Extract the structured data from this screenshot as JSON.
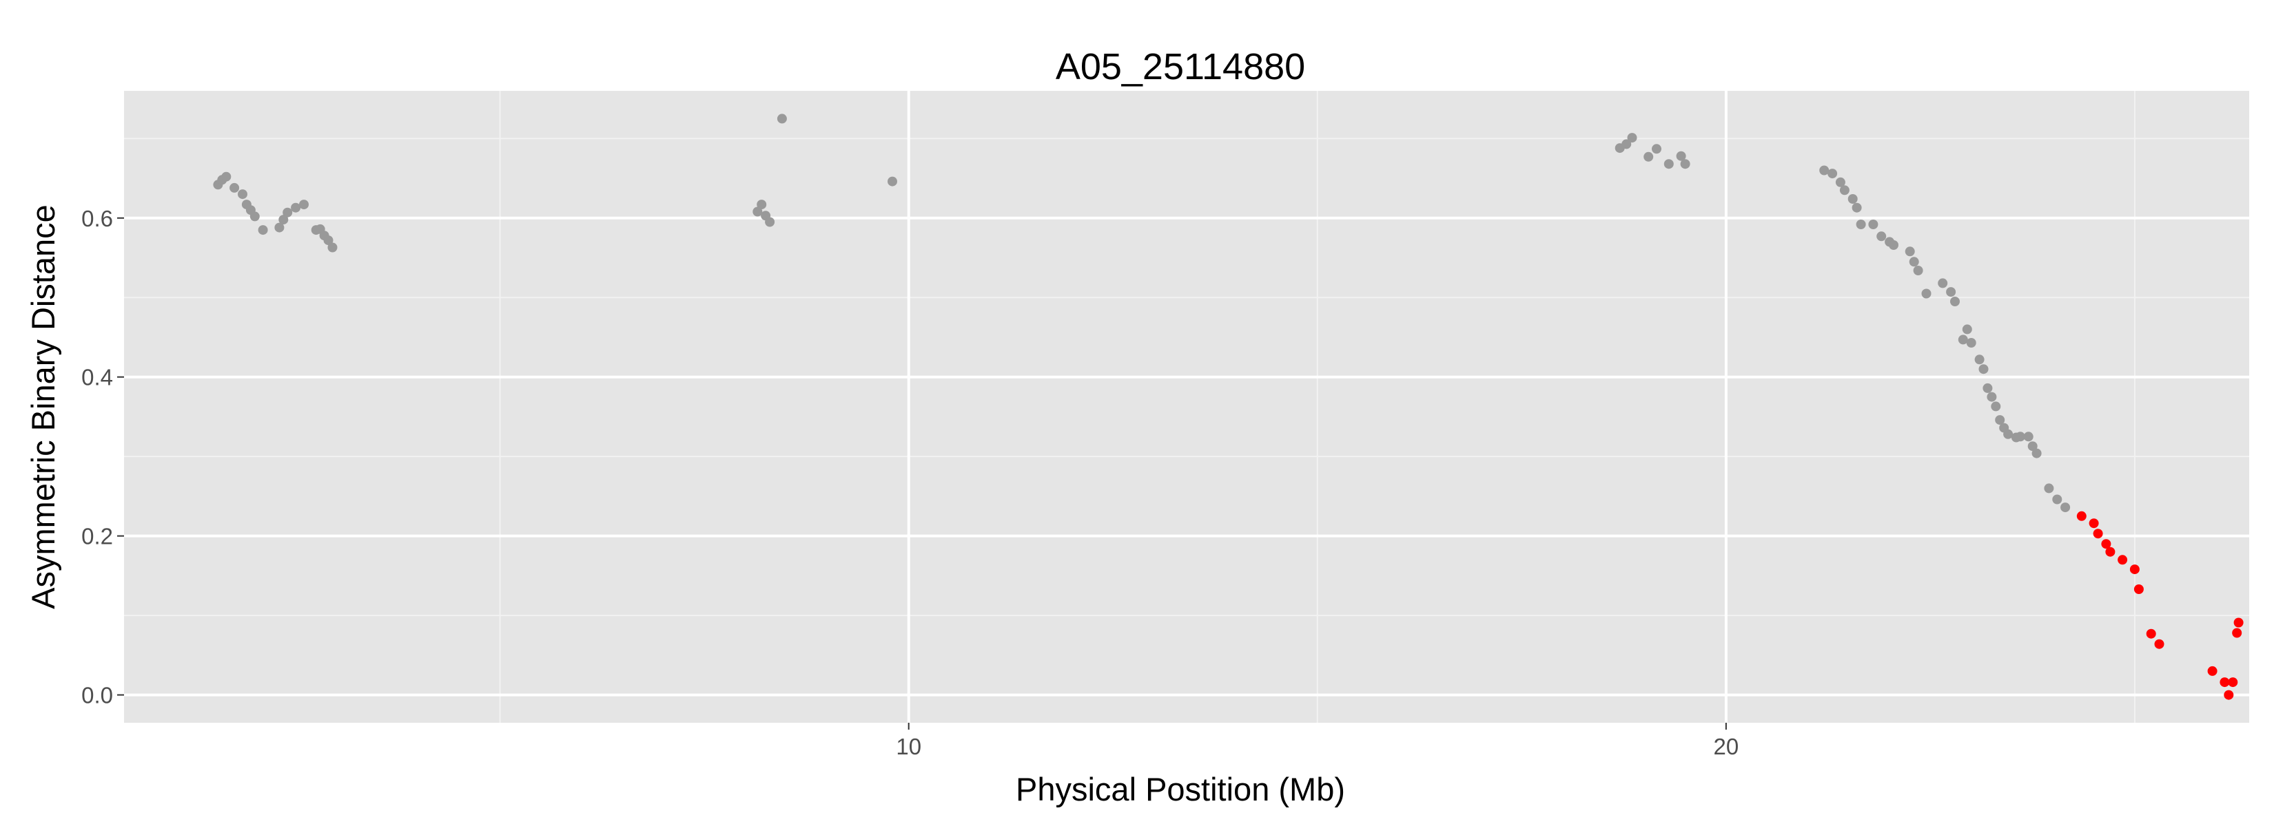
{
  "chart_data": {
    "type": "scatter",
    "title": "A05_25114880",
    "xlabel": "Physical Postition (Mb)",
    "ylabel": "Asymmetric Binary Distance",
    "xlim": [
      0.4,
      26.4
    ],
    "ylim": [
      -0.035,
      0.76
    ],
    "x_major_ticks": [
      10,
      20
    ],
    "x_minor_ticks": [
      5,
      15,
      25
    ],
    "y_major_ticks": [
      0.0,
      0.2,
      0.4,
      0.6
    ],
    "y_minor_ticks": [
      0.1,
      0.3,
      0.5,
      0.7
    ],
    "y_tick_labels": [
      "0.0",
      "0.2",
      "0.4",
      "0.6"
    ],
    "x_tick_labels": [
      "10",
      "20"
    ],
    "grid": true,
    "panel_background": "#e5e5e5",
    "series": [
      {
        "color": "#999999",
        "points": [
          [
            1.55,
            0.642
          ],
          [
            1.6,
            0.648
          ],
          [
            1.65,
            0.652
          ],
          [
            1.75,
            0.638
          ],
          [
            1.85,
            0.63
          ],
          [
            1.9,
            0.617
          ],
          [
            1.95,
            0.61
          ],
          [
            2.0,
            0.602
          ],
          [
            2.1,
            0.585
          ],
          [
            2.3,
            0.588
          ],
          [
            2.35,
            0.598
          ],
          [
            2.4,
            0.607
          ],
          [
            2.5,
            0.613
          ],
          [
            2.6,
            0.617
          ],
          [
            2.75,
            0.585
          ],
          [
            2.8,
            0.586
          ],
          [
            2.85,
            0.578
          ],
          [
            2.9,
            0.572
          ],
          [
            2.95,
            0.563
          ],
          [
            8.15,
            0.608
          ],
          [
            8.2,
            0.617
          ],
          [
            8.25,
            0.603
          ],
          [
            8.3,
            0.595
          ],
          [
            8.45,
            0.725
          ],
          [
            9.8,
            0.646
          ],
          [
            18.7,
            0.688
          ],
          [
            18.78,
            0.693
          ],
          [
            18.85,
            0.701
          ],
          [
            19.05,
            0.677
          ],
          [
            19.15,
            0.687
          ],
          [
            19.3,
            0.668
          ],
          [
            19.45,
            0.678
          ],
          [
            19.5,
            0.668
          ],
          [
            21.2,
            0.66
          ],
          [
            21.3,
            0.656
          ],
          [
            21.4,
            0.645
          ],
          [
            21.45,
            0.635
          ],
          [
            21.55,
            0.624
          ],
          [
            21.6,
            0.613
          ],
          [
            21.65,
            0.592
          ],
          [
            21.8,
            0.592
          ],
          [
            21.9,
            0.577
          ],
          [
            22.0,
            0.57
          ],
          [
            22.05,
            0.566
          ],
          [
            22.25,
            0.558
          ],
          [
            22.3,
            0.545
          ],
          [
            22.35,
            0.534
          ],
          [
            22.45,
            0.505
          ],
          [
            22.65,
            0.518
          ],
          [
            22.75,
            0.507
          ],
          [
            22.8,
            0.495
          ],
          [
            22.9,
            0.447
          ],
          [
            22.95,
            0.46
          ],
          [
            23.0,
            0.443
          ],
          [
            23.1,
            0.422
          ],
          [
            23.15,
            0.41
          ],
          [
            23.2,
            0.386
          ],
          [
            23.25,
            0.375
          ],
          [
            23.3,
            0.363
          ],
          [
            23.35,
            0.346
          ],
          [
            23.4,
            0.336
          ],
          [
            23.45,
            0.328
          ],
          [
            23.55,
            0.324
          ],
          [
            23.6,
            0.325
          ],
          [
            23.7,
            0.325
          ],
          [
            23.75,
            0.313
          ],
          [
            23.8,
            0.304
          ],
          [
            23.95,
            0.26
          ],
          [
            24.05,
            0.246
          ],
          [
            24.15,
            0.236
          ]
        ]
      },
      {
        "color": "#ff0000",
        "points": [
          [
            24.35,
            0.225
          ],
          [
            24.5,
            0.216
          ],
          [
            24.55,
            0.203
          ],
          [
            24.65,
            0.19
          ],
          [
            24.7,
            0.18
          ],
          [
            24.85,
            0.17
          ],
          [
            25.0,
            0.158
          ],
          [
            25.05,
            0.133
          ],
          [
            25.2,
            0.077
          ],
          [
            25.3,
            0.064
          ],
          [
            25.95,
            0.03
          ],
          [
            26.1,
            0.016
          ],
          [
            26.15,
            0.0
          ],
          [
            26.2,
            0.016
          ],
          [
            26.25,
            0.078
          ],
          [
            26.27,
            0.091
          ]
        ]
      }
    ]
  }
}
